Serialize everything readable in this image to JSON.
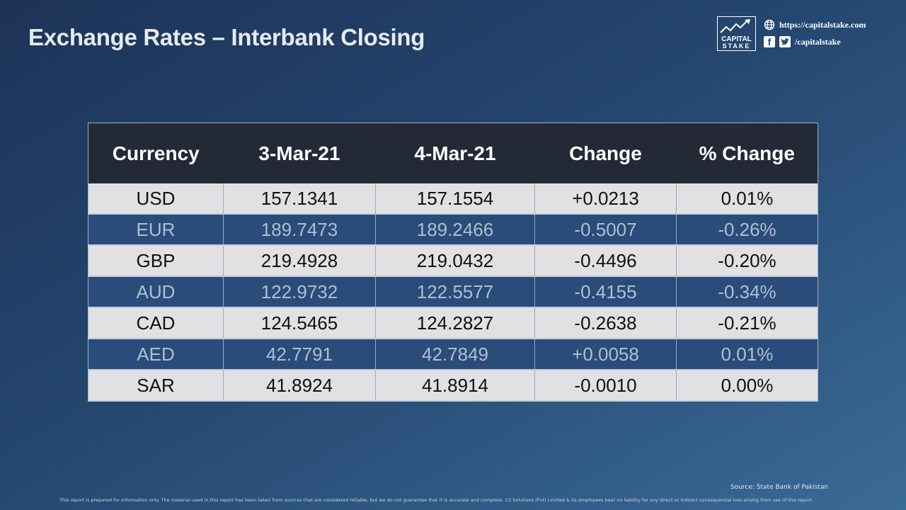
{
  "slide": {
    "title": "Exchange Rates – Interbank Closing"
  },
  "brand": {
    "logo_line1": "CAPITAL",
    "logo_line2": "STAKE",
    "website": "https://capitalstake.com",
    "social_handle": "/capitalstake"
  },
  "table": {
    "headers": [
      "Currency",
      "3-Mar-21",
      "4-Mar-21",
      "Change",
      "% Change"
    ],
    "rows": [
      {
        "currency": "USD",
        "prev": "157.1341",
        "curr": "157.1554",
        "change": "+0.0213",
        "pct": "0.01%"
      },
      {
        "currency": "EUR",
        "prev": "189.7473",
        "curr": "189.2466",
        "change": "-0.5007",
        "pct": "-0.26%"
      },
      {
        "currency": "GBP",
        "prev": "219.4928",
        "curr": "219.0432",
        "change": "-0.4496",
        "pct": "-0.20%"
      },
      {
        "currency": "AUD",
        "prev": "122.9732",
        "curr": "122.5577",
        "change": "-0.4155",
        "pct": "-0.34%"
      },
      {
        "currency": "CAD",
        "prev": "124.5465",
        "curr": "124.2827",
        "change": "-0.2638",
        "pct": "-0.21%"
      },
      {
        "currency": "AED",
        "prev": "42.7791",
        "curr": "42.7849",
        "change": "+0.0058",
        "pct": "0.01%"
      },
      {
        "currency": "SAR",
        "prev": "41.8924",
        "curr": "41.8914",
        "change": "-0.0010",
        "pct": "0.00%"
      }
    ]
  },
  "footer": {
    "source": "Source: State Bank of Pakistan",
    "disclaimer": "This report is prepared for information only. The material used in this report has been taken from sources that are considered reliable, but we do not guarantee that it is accurate and complete. CS Solutions (Pvt) Limited & its employees bear no liability for any direct or indirect consequential loss arising from use of this report."
  },
  "colors": {
    "header_bg": "#232a35",
    "row_light": "#e1e1e3",
    "row_dark": "#2a4c7a"
  },
  "icons": [
    "globe-icon",
    "facebook-icon",
    "twitter-icon",
    "capital-stake-logo"
  ]
}
